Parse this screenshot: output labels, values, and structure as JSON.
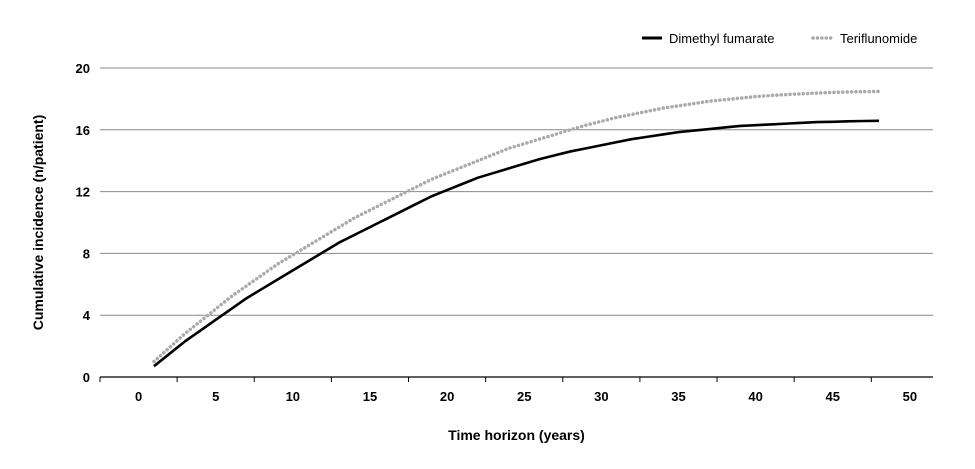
{
  "chart_data": {
    "type": "line",
    "title": "",
    "xlabel": "Time horizon (years)",
    "ylabel": "Cumulative incidence (n/patient)",
    "xlim": [
      -2.5,
      51.5
    ],
    "ylim": [
      0,
      20
    ],
    "x_ticks": [
      "0",
      "5",
      "10",
      "15",
      "20",
      "25",
      "30",
      "35",
      "40",
      "45",
      "50"
    ],
    "y_ticks": [
      "0",
      "4",
      "8",
      "12",
      "16",
      "20"
    ],
    "grid": "horizontal",
    "legend_position": "top-right",
    "series": [
      {
        "name": "Dimethyl fumarate",
        "color": "#000000",
        "style": "solid",
        "x": [
          1,
          2,
          3,
          4,
          5,
          6,
          7,
          8,
          9,
          10,
          11,
          12,
          13,
          14,
          15,
          16,
          17,
          18,
          19,
          20,
          21,
          22,
          23,
          24,
          25,
          26,
          27,
          28,
          29,
          30,
          31,
          32,
          33,
          34,
          35,
          36,
          37,
          38,
          39,
          40,
          41,
          42,
          43,
          44,
          45,
          46,
          47,
          48
        ],
        "values": [
          0.7,
          1.5,
          2.3,
          3.0,
          3.7,
          4.4,
          5.1,
          5.7,
          6.3,
          6.9,
          7.5,
          8.1,
          8.7,
          9.2,
          9.7,
          10.2,
          10.7,
          11.2,
          11.7,
          12.1,
          12.5,
          12.9,
          13.2,
          13.5,
          13.8,
          14.1,
          14.35,
          14.6,
          14.8,
          15.0,
          15.2,
          15.4,
          15.55,
          15.7,
          15.85,
          15.95,
          16.05,
          16.15,
          16.25,
          16.3,
          16.35,
          16.4,
          16.45,
          16.5,
          16.52,
          16.55,
          16.57,
          16.58
        ]
      },
      {
        "name": "Teriflunomide",
        "color": "#aaaaaa",
        "style": "dotted",
        "x": [
          1,
          2,
          3,
          4,
          5,
          6,
          7,
          8,
          9,
          10,
          11,
          12,
          13,
          14,
          15,
          16,
          17,
          18,
          19,
          20,
          21,
          22,
          23,
          24,
          25,
          26,
          27,
          28,
          29,
          30,
          31,
          32,
          33,
          34,
          35,
          36,
          37,
          38,
          39,
          40,
          41,
          42,
          43,
          44,
          45,
          46,
          47,
          48
        ],
        "values": [
          1.0,
          1.9,
          2.8,
          3.6,
          4.4,
          5.2,
          5.9,
          6.6,
          7.3,
          7.9,
          8.5,
          9.1,
          9.7,
          10.3,
          10.8,
          11.3,
          11.8,
          12.3,
          12.8,
          13.2,
          13.6,
          14.0,
          14.4,
          14.8,
          15.1,
          15.4,
          15.7,
          16.0,
          16.3,
          16.55,
          16.8,
          17.0,
          17.2,
          17.4,
          17.55,
          17.7,
          17.85,
          17.95,
          18.05,
          18.15,
          18.22,
          18.28,
          18.33,
          18.38,
          18.42,
          18.45,
          18.47,
          18.48
        ]
      }
    ]
  }
}
